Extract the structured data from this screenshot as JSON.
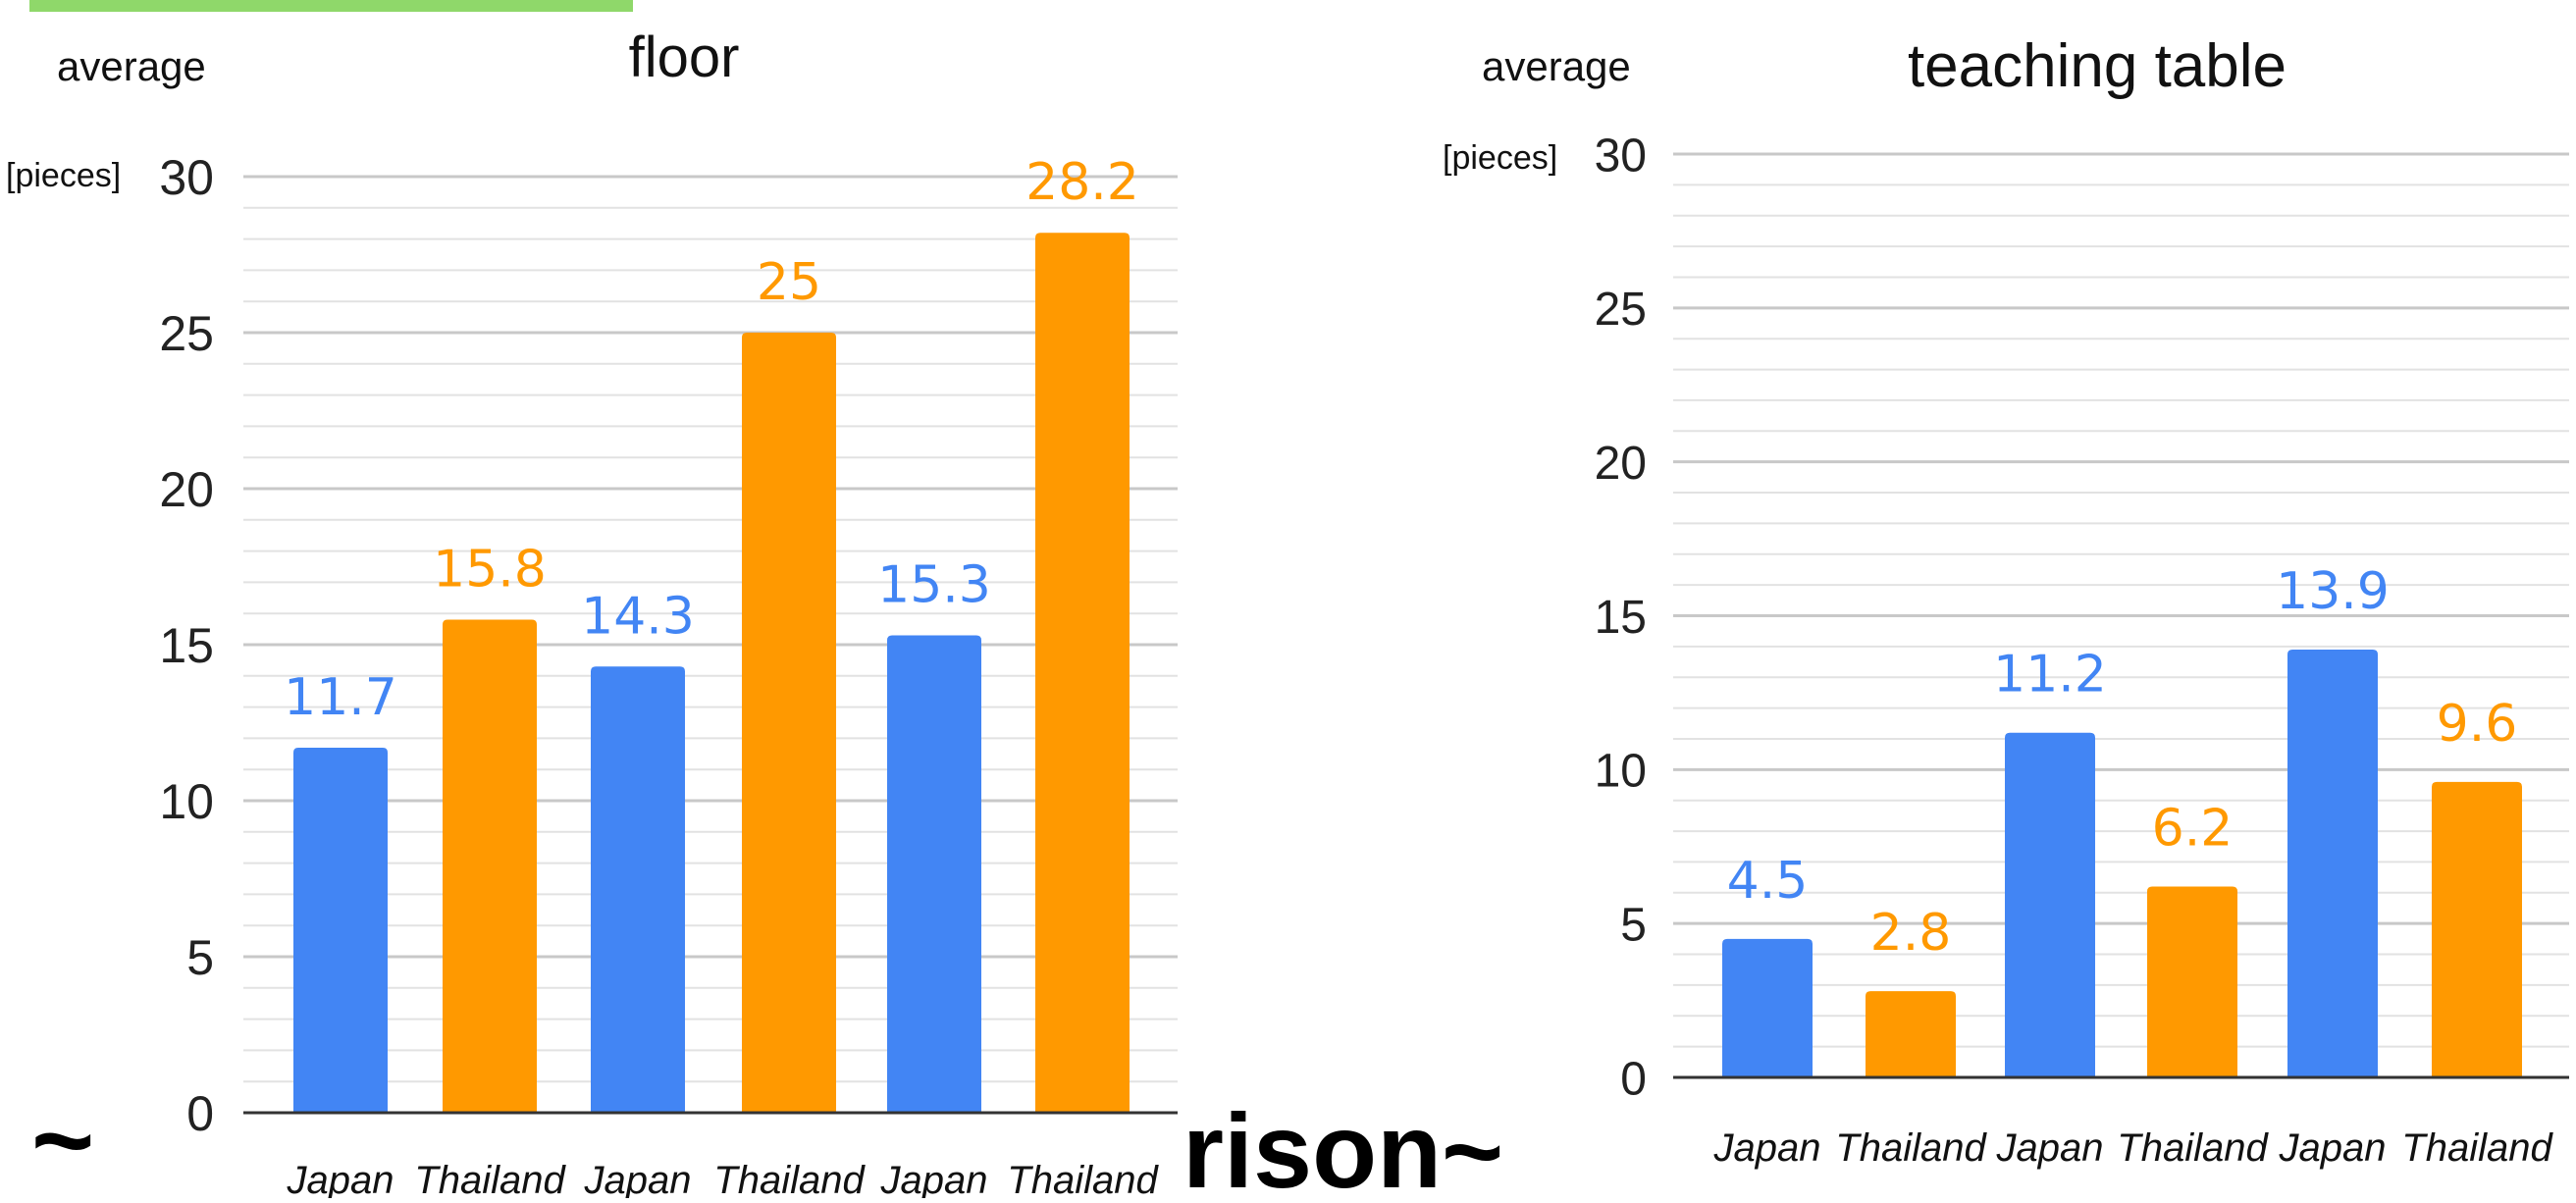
{
  "background_text": {
    "left_tilde": "~",
    "overlay": "rison~"
  },
  "colors": {
    "accent_strip": "#8fd86a",
    "japan": "#4285f4",
    "thailand": "#ff9900",
    "grid_major": "#c8c8c8",
    "grid_minor": "#e2e2e2",
    "axis": "#333333",
    "text": "#111111",
    "tick_text": "#222222"
  },
  "chart_data": [
    {
      "type": "bar",
      "title": "floor",
      "ylabel": "average",
      "yunit": "[pieces]",
      "ylim": [
        0,
        30
      ],
      "yticks": [
        0,
        5,
        10,
        15,
        20,
        25,
        30
      ],
      "minor_step": 1,
      "grid": true,
      "categories": [
        "Japan",
        "Thailand",
        "Japan",
        "Thailand",
        "Japan",
        "Thailand"
      ],
      "values": [
        11.7,
        15.8,
        14.3,
        25,
        15.3,
        28.2
      ],
      "value_labels": [
        "11.7",
        "15.8",
        "14.3",
        "25",
        "15.3",
        "28.2"
      ],
      "bar_colors": [
        "japan",
        "thailand",
        "japan",
        "thailand",
        "japan",
        "thailand"
      ]
    },
    {
      "type": "bar",
      "title": "teaching table",
      "ylabel": "average",
      "yunit": "[pieces]",
      "ylim": [
        0,
        30
      ],
      "yticks": [
        0,
        5,
        10,
        15,
        20,
        25,
        30
      ],
      "minor_step": 1,
      "grid": true,
      "categories": [
        "Japan",
        "Thailand",
        "Japan",
        "Thailand",
        "Japan",
        "Thailand"
      ],
      "values": [
        4.5,
        2.8,
        11.2,
        6.2,
        13.9,
        9.6
      ],
      "value_labels": [
        "4.5",
        "2.8",
        "11.2",
        "6.2",
        "13.9",
        "9.6"
      ],
      "bar_colors": [
        "japan",
        "thailand",
        "japan",
        "thailand",
        "japan",
        "thailand"
      ]
    }
  ]
}
